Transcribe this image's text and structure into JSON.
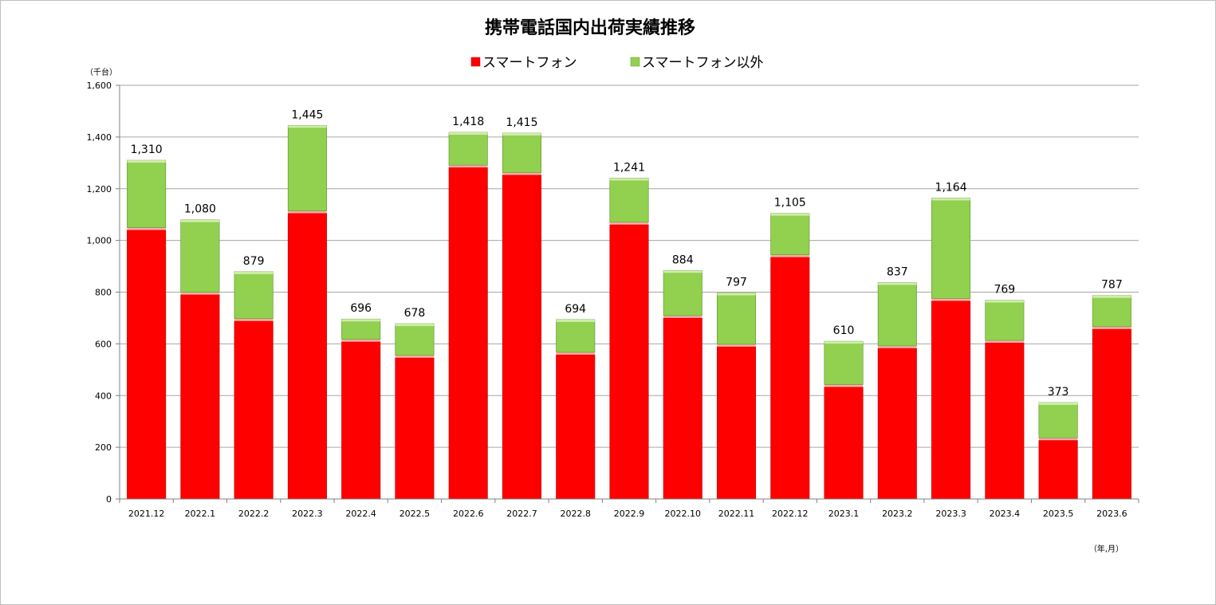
{
  "chart_data": {
    "type": "bar",
    "stacked": true,
    "title": "携帯電話国内出荷実績推移",
    "y_unit_label": "（千台）",
    "x_unit_label": "（年,月）",
    "ylim": [
      0,
      1600
    ],
    "y_ticks": [
      0,
      200,
      400,
      600,
      800,
      1000,
      1200,
      1400,
      1600
    ],
    "y_tick_labels": [
      "0",
      "200",
      "400",
      "600",
      "800",
      "1,000",
      "1,200",
      "1,400",
      "1,600"
    ],
    "grid": true,
    "legend_position": "top",
    "categories": [
      "2021.12",
      "2022.1",
      "2022.2",
      "2022.3",
      "2022.4",
      "2022.5",
      "2022.6",
      "2022.7",
      "2022.8",
      "2022.9",
      "2022.10",
      "2022.11",
      "2022.12",
      "2023.1",
      "2023.2",
      "2023.3",
      "2023.4",
      "2023.5",
      "2023.6"
    ],
    "series": [
      {
        "name": "スマートフォン",
        "color": "#ff0000",
        "values": [
          1040,
          790,
          688,
          1105,
          608,
          546,
          1282,
          1253,
          558,
          1061,
          700,
          589,
          935,
          433,
          583,
          766,
          604,
          227,
          657
        ]
      },
      {
        "name": "スマートフォン以外",
        "color": "#92d050",
        "values": [
          270,
          290,
          191,
          340,
          88,
          132,
          136,
          162,
          136,
          180,
          184,
          208,
          170,
          177,
          254,
          398,
          165,
          146,
          130
        ]
      }
    ],
    "totals": [
      1310,
      1080,
      879,
      1445,
      696,
      678,
      1418,
      1415,
      694,
      1241,
      884,
      797,
      1105,
      610,
      837,
      1164,
      769,
      373,
      787
    ],
    "total_labels": [
      "1,310",
      "1,080",
      "879",
      "1,445",
      "696",
      "678",
      "1,418",
      "1,415",
      "694",
      "1,241",
      "884",
      "797",
      "1,105",
      "610",
      "837",
      "1,164",
      "769",
      "373",
      "787"
    ]
  }
}
